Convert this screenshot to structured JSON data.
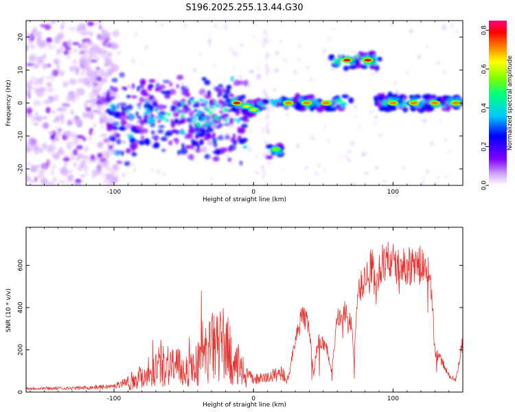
{
  "title": "S196.2025.255.13.44.G30",
  "chart_data": [
    {
      "type": "heatmap",
      "name": "spectrogram",
      "xlabel": "Height of straight line (km)",
      "ylabel": "Frequency (Hz)",
      "xlim": [
        -163,
        150
      ],
      "ylim": [
        -25,
        25
      ],
      "xticks": [
        -100,
        0,
        100
      ],
      "yticks": [
        -20,
        -10,
        0,
        10,
        20
      ],
      "colorbar": {
        "label": "Normalized spectral amplitude",
        "range": [
          0.0,
          0.85
        ],
        "ticks": [
          "0.0",
          "0.2",
          "0.4",
          "0.6",
          "0.8"
        ],
        "colors": [
          "#ffffff",
          "#d9b3ff",
          "#8000ff",
          "#0000ff",
          "#00c8ff",
          "#00ff80",
          "#80ff00",
          "#ffff00",
          "#ff8000",
          "#ff0000",
          "#ff0080"
        ]
      },
      "features": [
        {
          "x": -12,
          "f": 0,
          "amp": 0.85
        },
        {
          "x": -5,
          "f": -1,
          "amp": 0.7
        },
        {
          "x": 0,
          "f": -2,
          "amp": 0.65
        },
        {
          "x": 16,
          "f": -14,
          "amp": 0.6
        },
        {
          "x": 25,
          "f": 0,
          "amp": 0.75
        },
        {
          "x": 38,
          "f": 0,
          "amp": 0.8
        },
        {
          "x": 52,
          "f": 0,
          "amp": 0.8
        },
        {
          "x": 67,
          "f": 13,
          "amp": 0.85
        },
        {
          "x": 82,
          "f": 13,
          "amp": 0.85
        },
        {
          "x": 100,
          "f": 0,
          "amp": 0.75
        },
        {
          "x": 115,
          "f": 0,
          "amp": 0.8
        },
        {
          "x": 130,
          "f": 0,
          "amp": 0.8
        },
        {
          "x": 145,
          "f": 0,
          "amp": 0.75
        }
      ]
    },
    {
      "type": "line",
      "name": "snr",
      "xlabel": "Height of straight line (km)",
      "ylabel": "SNR (10 * v/v)",
      "xlim": [
        -163,
        150
      ],
      "ylim": [
        0,
        780
      ],
      "xticks": [
        -100,
        0,
        100
      ],
      "yticks": [
        0,
        200,
        400,
        600
      ],
      "color": "#e8322f",
      "envelope": [
        [
          -163,
          20
        ],
        [
          -130,
          20
        ],
        [
          -100,
          30
        ],
        [
          -90,
          60
        ],
        [
          -80,
          100
        ],
        [
          -70,
          150
        ],
        [
          -60,
          180
        ],
        [
          -50,
          130
        ],
        [
          -40,
          170
        ],
        [
          -30,
          270
        ],
        [
          -20,
          300
        ],
        [
          -15,
          180
        ],
        [
          -10,
          140
        ],
        [
          -5,
          100
        ],
        [
          0,
          70
        ],
        [
          10,
          80
        ],
        [
          20,
          110
        ],
        [
          25,
          60
        ],
        [
          28,
          200
        ],
        [
          35,
          380
        ],
        [
          40,
          320
        ],
        [
          43,
          80
        ],
        [
          46,
          250
        ],
        [
          52,
          230
        ],
        [
          56,
          100
        ],
        [
          60,
          350
        ],
        [
          66,
          390
        ],
        [
          70,
          320
        ],
        [
          72,
          180
        ],
        [
          75,
          480
        ],
        [
          80,
          560
        ],
        [
          85,
          620
        ],
        [
          88,
          480
        ],
        [
          90,
          600
        ],
        [
          95,
          650
        ],
        [
          100,
          630
        ],
        [
          105,
          600
        ],
        [
          110,
          620
        ],
        [
          115,
          610
        ],
        [
          120,
          620
        ],
        [
          125,
          590
        ],
        [
          128,
          450
        ],
        [
          130,
          200
        ],
        [
          135,
          150
        ],
        [
          140,
          80
        ],
        [
          145,
          60
        ],
        [
          150,
          250
        ]
      ]
    }
  ]
}
